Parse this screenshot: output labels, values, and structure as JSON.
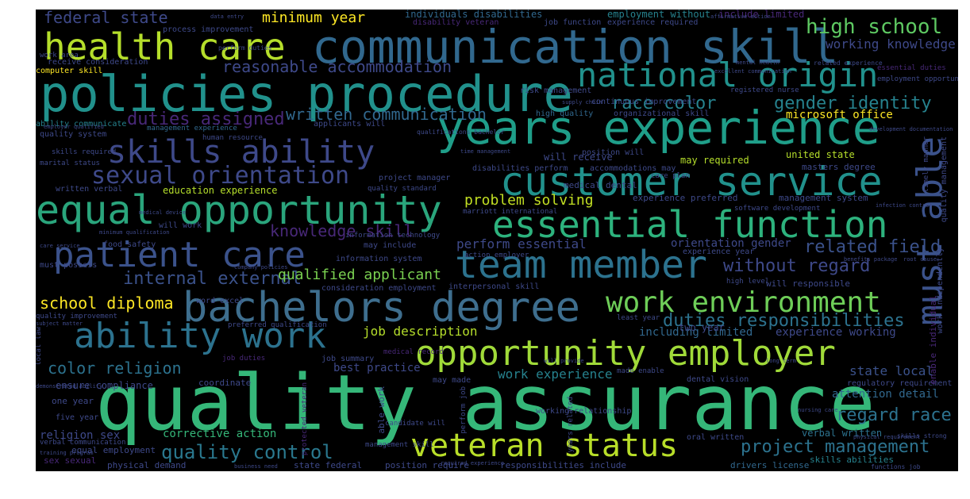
{
  "colors": {
    "background": "#000000",
    "page": "#ffffff",
    "palette": [
      "#fde725",
      "#b5de2b",
      "#6ece58",
      "#35b779",
      "#1f9e89",
      "#26828e",
      "#31688e",
      "#3e4989",
      "#482878",
      "#440154"
    ]
  },
  "words": [
    {
      "text": "quality assurance",
      "color": "#35b779"
    },
    {
      "text": "policies procedure",
      "color": "#21918c"
    },
    {
      "text": "communication skill",
      "color": "#31688e"
    },
    {
      "text": "years experience",
      "color": "#1f9e89"
    },
    {
      "text": "bachelors degree",
      "color": "#3e6e8e"
    },
    {
      "text": "equal opportunity",
      "color": "#2aa57c"
    },
    {
      "text": "customer service",
      "color": "#21918c"
    },
    {
      "text": "team member",
      "color": "#2c728e"
    },
    {
      "text": "health care",
      "color": "#b5de2b"
    },
    {
      "text": "essential function",
      "color": "#2db27d"
    },
    {
      "text": "opportunity employer",
      "color": "#a0da39"
    },
    {
      "text": "patient care",
      "color": "#3b528b"
    },
    {
      "text": "ability work",
      "color": "#2c728e"
    },
    {
      "text": "national origin",
      "color": "#21918c"
    },
    {
      "text": "veteran status",
      "color": "#b8de29"
    },
    {
      "text": "must able",
      "color": "#3b528b"
    },
    {
      "text": "skills ability",
      "color": "#3e4989"
    },
    {
      "text": "work environment",
      "color": "#6ece58"
    },
    {
      "text": "sexual orientation",
      "color": "#3e4989"
    },
    {
      "text": "quality control",
      "color": "#2a788e"
    },
    {
      "text": "high school",
      "color": "#5ec962"
    },
    {
      "text": "project management",
      "color": "#2c728e"
    },
    {
      "text": "duties responsibilities",
      "color": "#2c728e"
    },
    {
      "text": "internal external",
      "color": "#3b528b"
    },
    {
      "text": "gender identity",
      "color": "#26828e"
    },
    {
      "text": "race color",
      "color": "#26828e"
    },
    {
      "text": "related field",
      "color": "#3b528b"
    },
    {
      "text": "without regard",
      "color": "#3e4989"
    },
    {
      "text": "regard race",
      "color": "#2c728e"
    },
    {
      "text": "duties assigned",
      "color": "#482878"
    },
    {
      "text": "reasonable accommodation",
      "color": "#3e4989"
    },
    {
      "text": "federal state",
      "color": "#3e4989"
    },
    {
      "text": "color religion",
      "color": "#2c728e"
    },
    {
      "text": "school diploma",
      "color": "#fde725"
    },
    {
      "text": "knowledge skill",
      "color": "#482878"
    },
    {
      "text": "written communication",
      "color": "#31688e"
    },
    {
      "text": "perform essential",
      "color": "#3e4989"
    },
    {
      "text": "problem solving",
      "color": "#c2df23"
    },
    {
      "text": "minimum year",
      "color": "#fde725"
    },
    {
      "text": "qualified applicant",
      "color": "#7ad151"
    },
    {
      "text": "job description",
      "color": "#b5de2b"
    },
    {
      "text": "working knowledge",
      "color": "#3e4989"
    },
    {
      "text": "work experience",
      "color": "#26828e"
    },
    {
      "text": "state local",
      "color": "#3b528b"
    },
    {
      "text": "corrective action",
      "color": "#35b779"
    },
    {
      "text": "microsoft office",
      "color": "#fde725"
    },
    {
      "text": "verbal written",
      "color": "#2c728e"
    },
    {
      "text": "attention detail",
      "color": "#31688e"
    },
    {
      "text": "experience working",
      "color": "#3e4989"
    },
    {
      "text": "best practice",
      "color": "#3e4989"
    },
    {
      "text": "orientation gender",
      "color": "#3e4989"
    },
    {
      "text": "including limited",
      "color": "#31688e"
    },
    {
      "text": "religion sex",
      "color": "#3e4989"
    },
    {
      "text": "skills abilities",
      "color": "#26828e"
    },
    {
      "text": "physical demand",
      "color": "#3e4989"
    },
    {
      "text": "state federal",
      "color": "#3e4989"
    },
    {
      "text": "position require",
      "color": "#3e4989"
    },
    {
      "text": "responsibilities include",
      "color": "#3e4989"
    },
    {
      "text": "drivers license",
      "color": "#31688e"
    },
    {
      "text": "equal employment",
      "color": "#3e4989"
    },
    {
      "text": "ensure compliance",
      "color": "#3e4989"
    },
    {
      "text": "coordinate",
      "color": "#3e4989"
    },
    {
      "text": "one year",
      "color": "#3e4989"
    },
    {
      "text": "five year",
      "color": "#3e4989"
    },
    {
      "text": "sex sexual",
      "color": "#482878"
    },
    {
      "text": "education experience",
      "color": "#b5de2b"
    },
    {
      "text": "individuals disabilities",
      "color": "#31688e"
    },
    {
      "text": "disability veteran",
      "color": "#482878"
    },
    {
      "text": "employment without",
      "color": "#26828e"
    },
    {
      "text": "include limited",
      "color": "#482878"
    },
    {
      "text": "experience required",
      "color": "#3e4989"
    },
    {
      "text": "job function",
      "color": "#3e4989"
    },
    {
      "text": "process improvement",
      "color": "#3e4989"
    },
    {
      "text": "perform duties",
      "color": "#3e4989"
    },
    {
      "text": "receive consideration",
      "color": "#3e4989"
    },
    {
      "text": "computer skill",
      "color": "#fde725"
    },
    {
      "text": "risk management",
      "color": "#3e4989"
    },
    {
      "text": "ability communicate",
      "color": "#26828e"
    },
    {
      "text": "applicants will",
      "color": "#3e4989"
    },
    {
      "text": "continuous improvement",
      "color": "#3e4989"
    },
    {
      "text": "registered nurse",
      "color": "#3e4989"
    },
    {
      "text": "high quality",
      "color": "#31688e"
    },
    {
      "text": "organizational skill",
      "color": "#3e4989"
    },
    {
      "text": "management experience",
      "color": "#31688e"
    },
    {
      "text": "human resource",
      "color": "#3e4989"
    },
    {
      "text": "quality system",
      "color": "#3e4989"
    },
    {
      "text": "skills required",
      "color": "#3e4989"
    },
    {
      "text": "marital status",
      "color": "#3e4989"
    },
    {
      "text": "will receive",
      "color": "#3e4989"
    },
    {
      "text": "position will",
      "color": "#3e4989"
    },
    {
      "text": "disabilities perform",
      "color": "#3e4989"
    },
    {
      "text": "accommodations may",
      "color": "#3e4989"
    },
    {
      "text": "may required",
      "color": "#b5de2b"
    },
    {
      "text": "united state",
      "color": "#b5de2b"
    },
    {
      "text": "masters degree",
      "color": "#3e4989"
    },
    {
      "text": "written verbal",
      "color": "#3e4989"
    },
    {
      "text": "project manager",
      "color": "#3e4989"
    },
    {
      "text": "medical dental",
      "color": "#3e4989"
    },
    {
      "text": "quality standard",
      "color": "#3e4989"
    },
    {
      "text": "experience preferred",
      "color": "#3e4989"
    },
    {
      "text": "management system",
      "color": "#3e4989"
    },
    {
      "text": "marriott international",
      "color": "#3e4989"
    },
    {
      "text": "software development",
      "color": "#3e4989"
    },
    {
      "text": "will work",
      "color": "#3e4989"
    },
    {
      "text": "food safety",
      "color": "#3e4989"
    },
    {
      "text": "may include",
      "color": "#3e4989"
    },
    {
      "text": "information system",
      "color": "#3e4989"
    },
    {
      "text": "information technology",
      "color": "#3e4989"
    },
    {
      "text": "action employer",
      "color": "#3e4989"
    },
    {
      "text": "experience year",
      "color": "#3e4989"
    },
    {
      "text": "high level",
      "color": "#3e4989"
    },
    {
      "text": "will responsible",
      "color": "#3e4989"
    },
    {
      "text": "must possess",
      "color": "#3e4989"
    },
    {
      "text": "consideration employment",
      "color": "#3e4989"
    },
    {
      "text": "interpersonal skill",
      "color": "#3e4989"
    },
    {
      "text": "word excel",
      "color": "#3e4989"
    },
    {
      "text": "quality improvement",
      "color": "#3e4989"
    },
    {
      "text": "preferred qualification",
      "color": "#3e4989"
    },
    {
      "text": "least year",
      "color": "#3e4989"
    },
    {
      "text": "two year",
      "color": "#3e4989"
    },
    {
      "text": "medical record",
      "color": "#482878"
    },
    {
      "text": "job duties",
      "color": "#482878"
    },
    {
      "text": "job summary",
      "color": "#3e4989"
    },
    {
      "text": "may made",
      "color": "#3e4989"
    },
    {
      "text": "made enable",
      "color": "#3e4989"
    },
    {
      "text": "dental vision",
      "color": "#3e4989"
    },
    {
      "text": "regulatory requirement",
      "color": "#3e4989"
    },
    {
      "text": "working relationship",
      "color": "#3e4989"
    },
    {
      "text": "candidate will",
      "color": "#3e4989"
    },
    {
      "text": "oral written",
      "color": "#3e4989"
    },
    {
      "text": "work independently",
      "color": "#3e4989"
    },
    {
      "text": "timely manner",
      "color": "#3e4989"
    },
    {
      "text": "quality management",
      "color": "#3e4989"
    },
    {
      "text": "enable individual",
      "color": "#482878"
    },
    {
      "text": "essential duties",
      "color": "#482878"
    },
    {
      "text": "employment opportunity",
      "color": "#3e4989"
    },
    {
      "text": "related experience",
      "color": "#3e4989"
    },
    {
      "text": "work area",
      "color": "#3e4989"
    },
    {
      "text": "local law",
      "color": "#3e4989"
    },
    {
      "text": "verbal communication",
      "color": "#3e4989"
    },
    {
      "text": "training program",
      "color": "#3e4989"
    },
    {
      "text": "perform job",
      "color": "#3e4989"
    },
    {
      "text": "able work",
      "color": "#3e4989"
    },
    {
      "text": "protected veteran",
      "color": "#482878"
    },
    {
      "text": "management skill",
      "color": "#3e4989"
    },
    {
      "text": "skills strong",
      "color": "#3e4989"
    },
    {
      "text": "functions job",
      "color": "#3e4989"
    },
    {
      "text": "benefits package",
      "color": "#3e4989"
    },
    {
      "text": "root cause",
      "color": "#3e4989"
    },
    {
      "text": "nursing care",
      "color": "#3e4989"
    },
    {
      "text": "care plan",
      "color": "#3e4989"
    },
    {
      "text": "time management",
      "color": "#3e4989"
    },
    {
      "text": "supply chain",
      "color": "#3e4989"
    },
    {
      "text": "company policies",
      "color": "#3e4989"
    },
    {
      "text": "minimum qualification",
      "color": "#3e4989"
    },
    {
      "text": "care service",
      "color": "#3e4989"
    },
    {
      "text": "qualifications bachelor",
      "color": "#3e4989"
    },
    {
      "text": "employer qualified",
      "color": "#3e4989"
    },
    {
      "text": "data entry",
      "color": "#3e4989"
    },
    {
      "text": "affirmative action",
      "color": "#3e4989"
    },
    {
      "text": "mental health",
      "color": "#3e4989"
    },
    {
      "text": "excellent communication",
      "color": "#3e4989"
    },
    {
      "text": "development documentation",
      "color": "#3e4989"
    },
    {
      "text": "years related",
      "color": "#3e4989"
    },
    {
      "text": "physical requirement",
      "color": "#3e4989"
    },
    {
      "text": "required experience",
      "color": "#3e4989"
    },
    {
      "text": "demonstrated ability",
      "color": "#3e4989"
    },
    {
      "text": "subject matter",
      "color": "#3e4989"
    },
    {
      "text": "medical device",
      "color": "#3e4989"
    },
    {
      "text": "long term",
      "color": "#3e4989"
    },
    {
      "text": "infection control",
      "color": "#3e4989"
    },
    {
      "text": "business need",
      "color": "#3e4989"
    },
    {
      "text": "will provide",
      "color": "#3e4989"
    },
    {
      "text": "background check",
      "color": "#3e4989"
    }
  ]
}
